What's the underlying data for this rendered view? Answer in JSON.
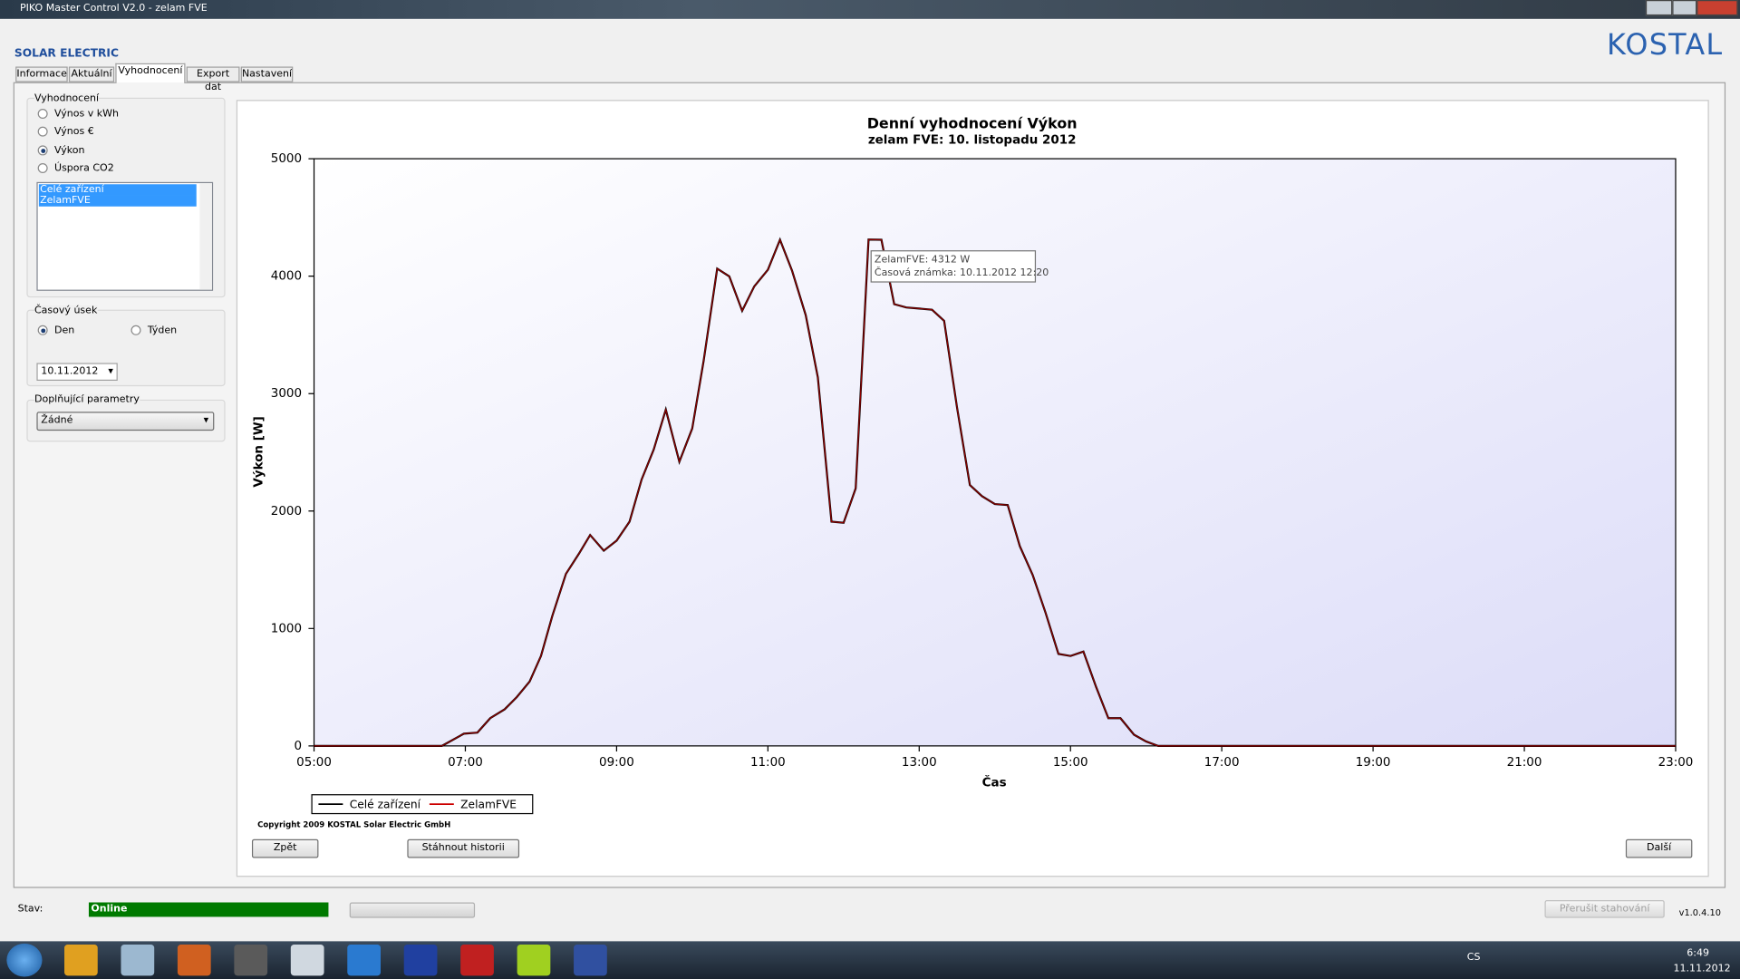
{
  "window": {
    "title": "PIKO Master Control V2.0 - zelam FVE",
    "brand": "SOLAR ELECTRIC",
    "logo": "KOSTAL",
    "tabs": [
      "Informace",
      "Aktuální",
      "Vyhodnocení",
      "Export dat",
      "Nastavení"
    ],
    "active_tab": 2,
    "evaluation": {
      "label": "Vyhodnocení",
      "options": [
        "Výnos v kWh",
        "Výnos €",
        "Výkon",
        "Úspora CO2"
      ],
      "selected_option": 2,
      "devices": [
        "Celé zařízení",
        "ZelamFVE"
      ]
    },
    "period": {
      "label": "Časový úsek",
      "options": [
        "Den",
        "Týden"
      ],
      "selected_option": 0,
      "date": "10.11.2012"
    },
    "extra": {
      "label": "Doplňující parametry",
      "value": "Žádné"
    },
    "copyright": "Copyright 2009 KOSTAL  Solar Electric GmbH",
    "buttons": [
      "Zpět",
      "Stáhnout historii",
      "Další"
    ],
    "status": {
      "label": "Stav:",
      "value": "Online",
      "cancel": "Přerušit stahování",
      "version": "v1.0.4.10"
    },
    "taskbar": {
      "language": "CS",
      "time": "6:49",
      "date": "11.11.2012"
    }
  },
  "chart_data": {
    "type": "line",
    "title": "Denní vyhodnocení Výkon",
    "subtitle": "zelam FVE: 10. listopadu 2012",
    "y_label": "Výkon [W]",
    "x_label": "Čas",
    "x": [
      5,
      5.5,
      6,
      6.33,
      6.69,
      6.98,
      7.16,
      7.33,
      7.52,
      7.68,
      7.85,
      8.0,
      8.15,
      8.33,
      8.5,
      8.65,
      8.83,
      9.0,
      9.17,
      9.33,
      9.49,
      9.65,
      9.83,
      10.0,
      10.15,
      10.33,
      10.49,
      10.66,
      10.82,
      11.0,
      11.16,
      11.32,
      11.5,
      11.66,
      11.84,
      12.0,
      12.16,
      12.33,
      12.5,
      12.67,
      12.83,
      13.0,
      13.17,
      13.33,
      13.5,
      13.67,
      13.83,
      14.0,
      14.17,
      14.33,
      14.5,
      14.67,
      14.84,
      15.0,
      15.17,
      15.34,
      15.5,
      15.66,
      15.84,
      16.0,
      16.16,
      16.5,
      17,
      18,
      19,
      20,
      21,
      22,
      23
    ],
    "series": [
      {
        "name": "Celé zařízení",
        "color": "#000000",
        "values": [
          0,
          0,
          0,
          0,
          0,
          104,
          113,
          236,
          312,
          416,
          548,
          766,
          1106,
          1465,
          1635,
          1796,
          1663,
          1749,
          1909,
          2268,
          2524,
          2864,
          2420,
          2703,
          3280,
          4064,
          3998,
          3705,
          3913,
          4055,
          4310,
          4045,
          3667,
          3138,
          1909,
          1900,
          2193,
          4312,
          4310,
          3762,
          3733,
          3724,
          3715,
          3620,
          2883,
          2221,
          2127,
          2060,
          2051,
          1701,
          1456,
          1134,
          784,
          766,
          803,
          501,
          236,
          236,
          95,
          38,
          0,
          0,
          0,
          0,
          0,
          0,
          0,
          0,
          0
        ]
      },
      {
        "name": "ZelamFVE",
        "color": "#cc0000",
        "values": [
          0,
          0,
          0,
          0,
          0,
          104,
          113,
          236,
          312,
          416,
          548,
          766,
          1106,
          1465,
          1635,
          1796,
          1663,
          1749,
          1909,
          2268,
          2524,
          2864,
          2420,
          2703,
          3280,
          4064,
          3998,
          3705,
          3913,
          4055,
          4310,
          4045,
          3667,
          3138,
          1909,
          1900,
          2193,
          4312,
          4310,
          3762,
          3733,
          3724,
          3715,
          3620,
          2883,
          2221,
          2127,
          2060,
          2051,
          1701,
          1456,
          1134,
          784,
          766,
          803,
          501,
          236,
          236,
          95,
          38,
          0,
          0,
          0,
          0,
          0,
          0,
          0,
          0,
          0
        ]
      }
    ],
    "xlim": [
      5,
      23
    ],
    "xticks": [
      {
        "value": 5,
        "label": "05:00"
      },
      {
        "value": 7,
        "label": "07:00"
      },
      {
        "value": 9,
        "label": "09:00"
      },
      {
        "value": 11,
        "label": "11:00"
      },
      {
        "value": 13,
        "label": "13:00"
      },
      {
        "value": 15,
        "label": "15:00"
      },
      {
        "value": 17,
        "label": "17:00"
      },
      {
        "value": 19,
        "label": "19:00"
      },
      {
        "value": 21,
        "label": "21:00"
      },
      {
        "value": 23,
        "label": "23:00"
      }
    ],
    "ylim": [
      0,
      5000
    ],
    "yticks": [
      0,
      1000,
      2000,
      3000,
      4000,
      5000
    ],
    "grid": false,
    "legend": "below",
    "tooltip": [
      "ZelamFVE: 4312 W",
      "Časová známka: 10.11.2012 12:20"
    ]
  }
}
